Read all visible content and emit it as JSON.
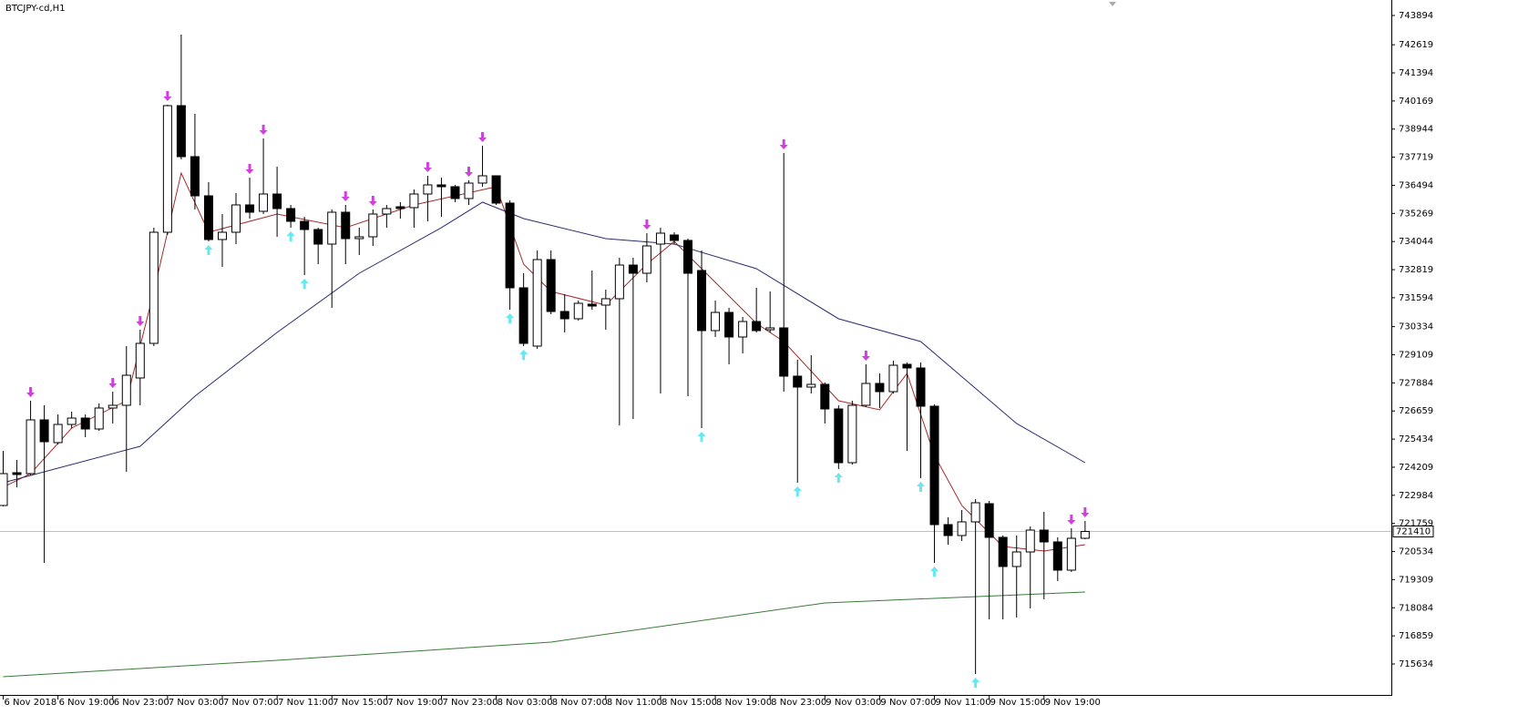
{
  "title": "BTCJPY-cd,H1",
  "chart_data": {
    "type": "candlestick",
    "categories": [
      "6 Nov 2018",
      null,
      null,
      null,
      "6 Nov 19:00",
      null,
      null,
      null,
      "6 Nov 23:00",
      null,
      null,
      null,
      "7 Nov 03:00",
      null,
      null,
      null,
      "7 Nov 07:00",
      null,
      null,
      null,
      "7 Nov 11:00",
      null,
      null,
      null,
      "7 Nov 15:00",
      null,
      null,
      null,
      "7 Nov 19:00",
      null,
      null,
      null,
      "7 Nov 23:00",
      null,
      null,
      null,
      "8 Nov 03:00",
      null,
      null,
      null,
      "8 Nov 07:00",
      null,
      null,
      null,
      "8 Nov 11:00",
      null,
      null,
      null,
      "8 Nov 15:00",
      null,
      null,
      null,
      "8 Nov 19:00",
      null,
      null,
      null,
      "8 Nov 23:00",
      null,
      null,
      null,
      "9 Nov 03:00",
      null,
      null,
      null,
      "9 Nov 07:00",
      null,
      null,
      null,
      "9 Nov 11:00",
      null,
      null,
      null,
      "9 Nov 15:00",
      null,
      null,
      null,
      "9 Nov 19:00",
      null,
      null,
      null
    ],
    "open": [
      722541,
      723970,
      723930,
      726272,
      725280,
      726073,
      726351,
      725875,
      726788,
      726907,
      728098,
      729606,
      734448,
      739965,
      737742,
      736036,
      734131,
      734448,
      735639,
      735361,
      736115,
      735480,
      734924,
      734567,
      733932,
      735321,
      734170,
      734250,
      735242,
      735559,
      735520,
      736115,
      736512,
      736433,
      735917,
      736591,
      736909,
      735718,
      732027,
      729487,
      733257,
      730995,
      730678,
      731313,
      731273,
      731551,
      733019,
      732662,
      733932,
      734329,
      734091,
      732781,
      730162,
      730955,
      729884,
      730558,
      730201,
      730281,
      728177,
      727701,
      727820,
      726748,
      724406,
      726907,
      727860,
      727502,
      728693,
      728534,
      726867,
      721708,
      721231,
      721827,
      722620,
      721152,
      719882,
      720517,
      721469,
      720953,
      719723,
      721112
    ],
    "high": [
      724922,
      724526,
      727105,
      726907,
      726510,
      726629,
      726510,
      726986,
      727502,
      729487,
      730201,
      734647,
      740005,
      743061,
      739608,
      736631,
      735242,
      736155,
      736829,
      738536,
      737306,
      735639,
      735123,
      734647,
      735440,
      735639,
      734647,
      735440,
      735639,
      735758,
      736313,
      736909,
      736829,
      736512,
      736710,
      738219,
      736909,
      735837,
      732662,
      733654,
      733654,
      731749,
      731471,
      732781,
      731948,
      733337,
      733337,
      734408,
      734647,
      734448,
      734170,
      733654,
      731471,
      731154,
      730757,
      732027,
      731868,
      737901,
      728891,
      729090,
      727899,
      726907,
      727105,
      728693,
      728296,
      728852,
      728772,
      728772,
      726947,
      722025,
      722343,
      722819,
      722740,
      721231,
      721231,
      721628,
      722263,
      721152,
      721549,
      721866
    ],
    "low": [
      722501,
      723335,
      723851,
      720041,
      725200,
      725915,
      725518,
      725796,
      726113,
      724010,
      726907,
      729487,
      734329,
      737623,
      735440,
      734051,
      732940,
      733932,
      735043,
      735242,
      734250,
      734647,
      732583,
      733059,
      731154,
      733059,
      733456,
      733853,
      734647,
      735043,
      734647,
      734924,
      735123,
      735758,
      735639,
      736433,
      735639,
      731074,
      729487,
      729368,
      730876,
      730082,
      730598,
      731074,
      730201,
      726034,
      726312,
      732265,
      727423,
      733932,
      727304,
      725915,
      729884,
      728693,
      729169,
      730082,
      730082,
      727502,
      723533,
      727423,
      726113,
      724129,
      724327,
      726828,
      726788,
      727423,
      724922,
      723732,
      720041,
      720834,
      720993,
      715198,
      717580,
      717580,
      717659,
      718056,
      718453,
      719247,
      719644,
      721073
    ],
    "close": [
      723930,
      723891,
      726272,
      725319,
      726073,
      726351,
      725875,
      726788,
      726907,
      728217,
      729606,
      734448,
      739965,
      737742,
      736036,
      734131,
      734448,
      735639,
      735321,
      736115,
      735480,
      734924,
      734567,
      733932,
      735321,
      734170,
      734250,
      735242,
      735480,
      735480,
      736115,
      736512,
      736433,
      735917,
      736591,
      736909,
      735718,
      732027,
      729606,
      733257,
      730995,
      730678,
      731352,
      731233,
      731551,
      733019,
      732662,
      733853,
      734408,
      734091,
      732662,
      730162,
      730955,
      729884,
      730558,
      730162,
      730281,
      728177,
      727701,
      727820,
      726748,
      724406,
      726907,
      727860,
      727502,
      728653,
      728534,
      726867,
      721708,
      721231,
      721827,
      722660,
      721152,
      719882,
      720517,
      721469,
      720953,
      719723,
      721112,
      721410
    ],
    "series": [
      {
        "color": "#a52a2a",
        "x": [
          0,
          2,
          5,
          9,
          11,
          13,
          15,
          20,
          25,
          30,
          36,
          38,
          40,
          44,
          47,
          49,
          51,
          55,
          57,
          61,
          64,
          66,
          68,
          70,
          73,
          76,
          79
        ],
        "values": [
          723335,
          723930,
          725915,
          727105,
          731868,
          737028,
          734448,
          735242,
          734647,
          735639,
          736433,
          733059,
          731868,
          731273,
          733059,
          734051,
          732860,
          730479,
          729685,
          727105,
          726709,
          728296,
          724724,
          722541,
          720755,
          720557,
          720834
        ]
      },
      {
        "color": "#2c2c6e",
        "x": [
          0,
          10,
          14,
          20,
          26,
          32,
          35,
          38,
          44,
          49,
          55,
          61,
          67,
          74,
          79
        ],
        "values": [
          723533,
          725121,
          727304,
          730082,
          732662,
          734647,
          735758,
          735043,
          734170,
          733932,
          732860,
          730678,
          729685,
          726113,
          724406
        ]
      },
      {
        "color": "#3a7a3a",
        "x": [
          0,
          20,
          40,
          60,
          79
        ],
        "values": [
          715079,
          715794,
          716588,
          718294,
          718770
        ]
      }
    ],
    "down_arrows": [
      2,
      8,
      10,
      12,
      18,
      19,
      25,
      27,
      31,
      34,
      35,
      47,
      57,
      63,
      78,
      79
    ],
    "up_arrows": [
      15,
      21,
      22,
      37,
      38,
      51,
      58,
      61,
      67,
      68,
      71
    ],
    "arrow_up_color": "#66e8f0",
    "arrow_down_color": "#d23ee0",
    "last_price": 721410,
    "ylim": [
      714285,
      744569
    ],
    "yticks": [
      743894,
      742619,
      741394,
      740169,
      738944,
      737719,
      736494,
      735269,
      734044,
      732819,
      731594,
      730334,
      729109,
      727884,
      726659,
      725434,
      724209,
      722984,
      721759,
      720534,
      719309,
      718084,
      716859,
      715634
    ]
  }
}
